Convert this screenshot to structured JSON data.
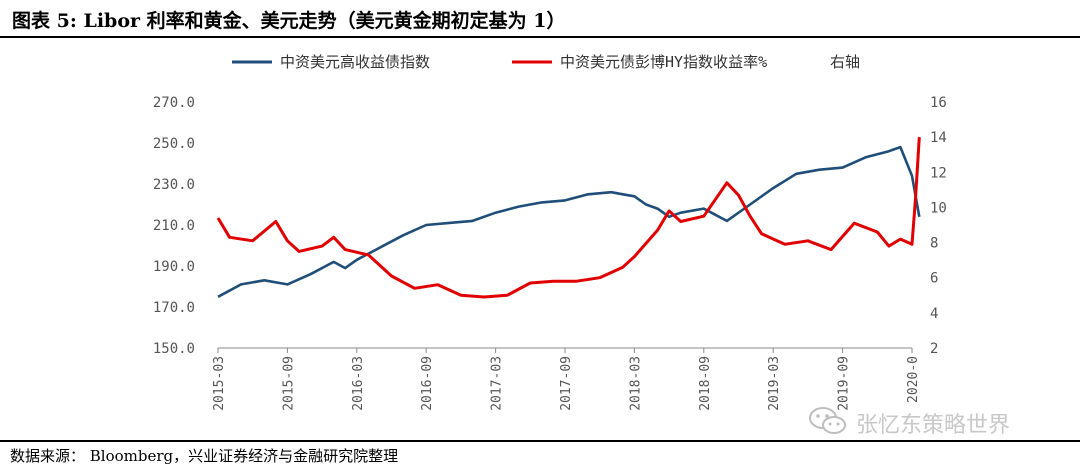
{
  "page": {
    "title": "图表 5:  Libor 利率和黄金、美元走势（美元黄金期初定基为 1）",
    "source": "数据来源：  Bloomberg，兴业证券经济与金融研究院整理",
    "watermark": "张忆东策略世界",
    "watermark_icon": "wechat-icon"
  },
  "colors": {
    "blue": "#1f4e79",
    "red": "#e00000",
    "axis": "#888888"
  },
  "chart_data": {
    "type": "line",
    "title": "",
    "xlabel": "",
    "ylabel": "",
    "y_left": {
      "lim": [
        150,
        270
      ],
      "ticks": [
        150,
        170,
        190,
        210,
        230,
        250,
        270
      ],
      "tick_labels": [
        "150.0",
        "170.0",
        "190.0",
        "210.0",
        "230.0",
        "250.0",
        "270.0"
      ]
    },
    "y_right": {
      "lim": [
        2,
        16
      ],
      "ticks": [
        2,
        4,
        6,
        8,
        10,
        12,
        14,
        16
      ],
      "tick_labels": [
        "2",
        "4",
        "6",
        "8",
        "10",
        "12",
        "14",
        "16"
      ]
    },
    "x_domain": [
      "2015-03",
      "2020-03"
    ],
    "x_tick_labels": [
      "2015-03",
      "2015-09",
      "2016-03",
      "2016-09",
      "2017-03",
      "2017-09",
      "2018-03",
      "2018-09",
      "2019-03",
      "2019-09",
      "2020-0"
    ],
    "legend_position": "top",
    "grid": false,
    "series": [
      {
        "name": "中资美元高收益债指数",
        "axis": "left",
        "color": "#1f4e79",
        "points": [
          [
            "2015-03",
            175
          ],
          [
            "2015-05",
            181
          ],
          [
            "2015-07",
            183
          ],
          [
            "2015-09",
            181
          ],
          [
            "2015-11",
            186
          ],
          [
            "2016-01",
            192
          ],
          [
            "2016-02",
            189
          ],
          [
            "2016-03",
            193
          ],
          [
            "2016-05",
            199
          ],
          [
            "2016-07",
            205
          ],
          [
            "2016-09",
            210
          ],
          [
            "2016-11",
            211
          ],
          [
            "2017-01",
            212
          ],
          [
            "2017-03",
            216
          ],
          [
            "2017-05",
            219
          ],
          [
            "2017-07",
            221
          ],
          [
            "2017-09",
            222
          ],
          [
            "2017-11",
            225
          ],
          [
            "2018-01",
            226
          ],
          [
            "2018-02",
            225
          ],
          [
            "2018-03",
            224
          ],
          [
            "2018-04",
            220
          ],
          [
            "2018-05",
            218
          ],
          [
            "2018-06",
            214
          ],
          [
            "2018-07",
            216
          ],
          [
            "2018-09",
            218
          ],
          [
            "2018-10",
            215
          ],
          [
            "2018-11",
            212
          ],
          [
            "2019-01",
            220
          ],
          [
            "2019-03",
            228
          ],
          [
            "2019-05",
            235
          ],
          [
            "2019-07",
            237
          ],
          [
            "2019-09",
            238
          ],
          [
            "2019-11",
            243
          ],
          [
            "2020-01",
            246
          ],
          [
            "2020-02",
            248
          ],
          [
            "2020-03",
            234
          ],
          [
            "2020-03-20",
            214
          ]
        ]
      },
      {
        "name": "中资美元债彭博HY指数收益率%  右轴",
        "legend_label": "中资美元债彭博HY指数收益率%",
        "legend_suffix": "右轴",
        "axis": "right",
        "color": "#e00000",
        "points": [
          [
            "2015-03",
            9.4
          ],
          [
            "2015-04",
            8.3
          ],
          [
            "2015-06",
            8.1
          ],
          [
            "2015-08",
            9.2
          ],
          [
            "2015-09",
            8.1
          ],
          [
            "2015-10",
            7.5
          ],
          [
            "2015-12",
            7.8
          ],
          [
            "2016-01",
            8.3
          ],
          [
            "2016-02",
            7.6
          ],
          [
            "2016-04",
            7.3
          ],
          [
            "2016-06",
            6.1
          ],
          [
            "2016-08",
            5.4
          ],
          [
            "2016-10",
            5.6
          ],
          [
            "2016-12",
            5.0
          ],
          [
            "2017-02",
            4.9
          ],
          [
            "2017-04",
            5.0
          ],
          [
            "2017-06",
            5.7
          ],
          [
            "2017-08",
            5.8
          ],
          [
            "2017-10",
            5.8
          ],
          [
            "2017-12",
            6.0
          ],
          [
            "2018-02",
            6.6
          ],
          [
            "2018-03",
            7.2
          ],
          [
            "2018-05",
            8.7
          ],
          [
            "2018-06",
            9.8
          ],
          [
            "2018-07",
            9.2
          ],
          [
            "2018-09",
            9.5
          ],
          [
            "2018-11",
            11.4
          ],
          [
            "2018-12",
            10.7
          ],
          [
            "2019-01",
            9.5
          ],
          [
            "2019-02",
            8.5
          ],
          [
            "2019-04",
            7.9
          ],
          [
            "2019-06",
            8.1
          ],
          [
            "2019-08",
            7.6
          ],
          [
            "2019-10",
            9.1
          ],
          [
            "2019-12",
            8.6
          ],
          [
            "2020-01",
            7.8
          ],
          [
            "2020-02",
            8.2
          ],
          [
            "2020-03",
            7.9
          ],
          [
            "2020-03-10",
            10.5
          ],
          [
            "2020-03-20",
            14.0
          ]
        ]
      }
    ]
  }
}
